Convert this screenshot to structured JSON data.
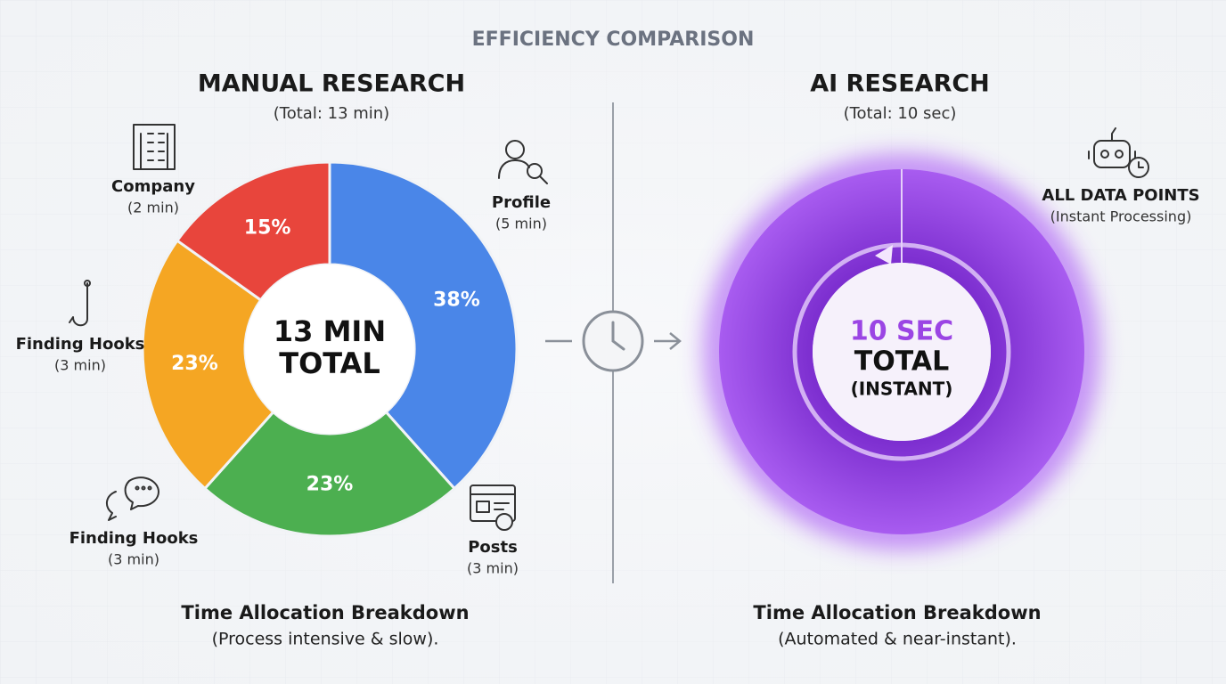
{
  "header": {
    "title": "EFFICIENCY COMPARISON"
  },
  "chart_data": [
    {
      "type": "donut",
      "title": "MANUAL RESEARCH",
      "subtitle": "(Total: 13 min)",
      "center_label": [
        "13 MIN",
        "TOTAL"
      ],
      "categories": [
        "Profile",
        "Posts",
        "Finding Hooks",
        "Company"
      ],
      "details": [
        "(5 min)",
        "(3 min)",
        "(3 min)",
        "(2 min)"
      ],
      "values": [
        38,
        23,
        23,
        15
      ],
      "value_labels": [
        "38%",
        "23%",
        "23%",
        "15%"
      ],
      "colors": [
        "#4a86e8",
        "#4caf50",
        "#f5a623",
        "#e8453c"
      ],
      "annotations": [
        {
          "text": "Finding Hooks",
          "detail": "(3 min)"
        }
      ],
      "caption": "Time Allocation Breakdown",
      "caption_detail": "(Process intensive & slow)."
    },
    {
      "type": "donut",
      "title": "AI RESEARCH",
      "subtitle": "(Total: 10 sec)",
      "center_label": [
        "10 SEC",
        "TOTAL",
        "(INSTANT)"
      ],
      "categories": [
        "ALL DATA POINTS"
      ],
      "details": [
        "(Instant Processing)"
      ],
      "values": [
        100
      ],
      "colors": [
        "#9b45e4"
      ],
      "caption": "Time Allocation Breakdown",
      "caption_detail": "(Automated & near-instant)."
    }
  ]
}
